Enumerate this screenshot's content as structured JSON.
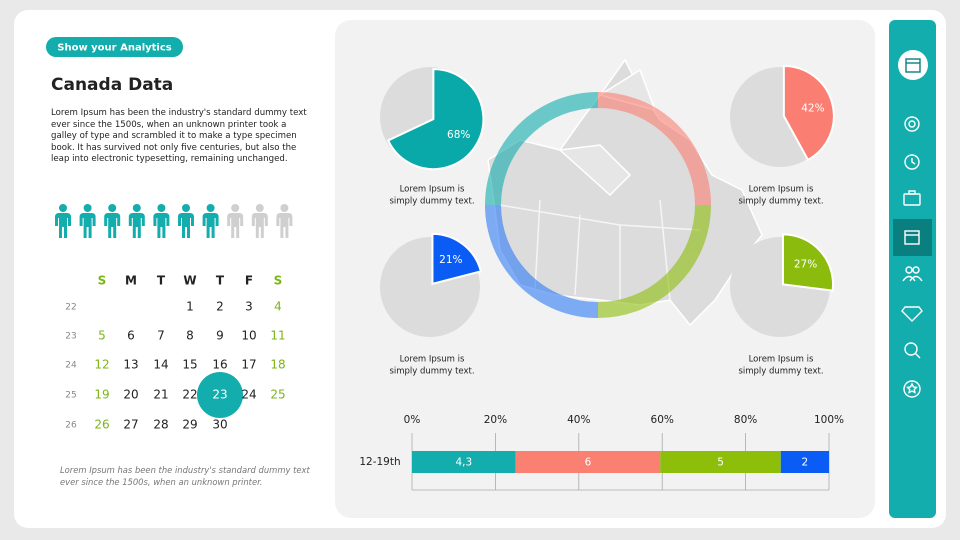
{
  "badge": "Show your Analytics",
  "title": "Canada Data",
  "body": "Lorem Ipsum has been the industry's standard dummy text ever since the 1500s, when an unknown printer took a galley of type and scrambled it to make a type specimen book. It has survived not only five centuries, but also the leap into electronic typesetting, remaining unchanged.",
  "people": {
    "filled": 7,
    "total": 10,
    "color": "#13adad",
    "empty_color": "#cfcfcf"
  },
  "calendar": {
    "days": [
      "S",
      "M",
      "T",
      "W",
      "T",
      "F",
      "S"
    ],
    "weekend_color": "#7cb518",
    "selected": 23,
    "weeks": [
      {
        "number": 22,
        "dates": [
          null,
          null,
          null,
          1,
          2,
          3,
          4
        ]
      },
      {
        "number": 23,
        "dates": [
          5,
          6,
          7,
          8,
          9,
          10,
          11
        ]
      },
      {
        "number": 24,
        "dates": [
          12,
          13,
          14,
          15,
          16,
          17,
          18
        ]
      },
      {
        "number": 25,
        "dates": [
          19,
          20,
          21,
          22,
          23,
          24,
          25
        ]
      },
      {
        "number": 26,
        "dates": [
          26,
          27,
          28,
          29,
          30,
          null,
          null
        ]
      }
    ]
  },
  "footnote": "Lorem Ipsum has been the industry's standard dummy text ever since the 1500s, when an unknown printer.",
  "pies": [
    {
      "value": 68,
      "value_label": "68%",
      "color": "#0aa9a9",
      "caption": [
        "Lorem Ipsum is",
        "simply  dummy text."
      ]
    },
    {
      "value": 42,
      "value_label": "42%",
      "color": "#fa7f72",
      "caption": [
        "Lorem Ipsum is",
        "simply  dummy text."
      ]
    },
    {
      "value": 21,
      "value_label": "21%",
      "color": "#0a5cf5",
      "caption": [
        "Lorem Ipsum is",
        "simply  dummy text."
      ]
    },
    {
      "value": 27,
      "value_label": "27%",
      "color": "#8bbb0c",
      "caption": [
        "Lorem Ipsum is",
        "simply  dummy text."
      ]
    }
  ],
  "bar": {
    "category": "12-19th",
    "xlim": [
      0,
      100
    ],
    "xticks": [
      {
        "value": 0,
        "label": "0%"
      },
      {
        "value": 20,
        "label": "20%"
      },
      {
        "value": 40,
        "label": "40%"
      },
      {
        "value": 60,
        "label": "60%"
      },
      {
        "value": 80,
        "label": "80%"
      },
      {
        "value": 100,
        "label": "100%"
      }
    ],
    "segments": [
      {
        "value": 4.3,
        "value_label": "4,3",
        "color": "#13adad"
      },
      {
        "value": 6,
        "value_label": "6",
        "color": "#fa8072"
      },
      {
        "value": 5,
        "value_label": "5",
        "color": "#8dbe0a"
      },
      {
        "value": 2,
        "value_label": "2",
        "color": "#0a5cf5"
      }
    ]
  }
}
